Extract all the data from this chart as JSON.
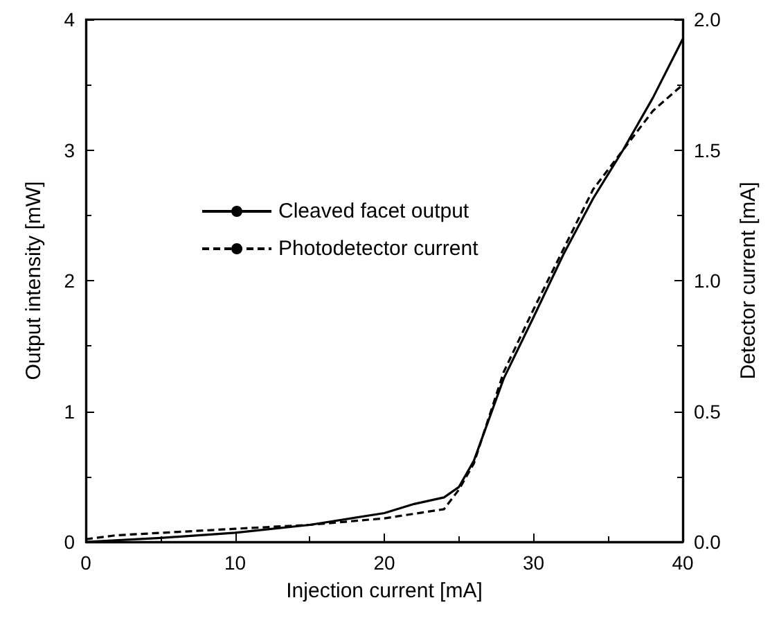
{
  "chart_data": {
    "type": "line",
    "xlabel": "Injection current [mA]",
    "ylabel": "Output intensity [mW]",
    "y2label": "Detector current [mA]",
    "xlim": [
      0,
      40
    ],
    "xticks": [
      0,
      10,
      20,
      30,
      40
    ],
    "ylim": [
      0,
      4
    ],
    "yticks": [
      0,
      1,
      2,
      3,
      4
    ],
    "y2lim": [
      0,
      2
    ],
    "y2ticks": [
      {
        "value": 0,
        "label": "0.0"
      },
      {
        "value": 0.5,
        "label": "0.5"
      },
      {
        "value": 1,
        "label": "1.0"
      },
      {
        "value": 1.5,
        "label": "1.5"
      },
      {
        "value": 2,
        "label": "2.0"
      }
    ],
    "grid": false,
    "legend": "left",
    "marker": "none",
    "series": [
      {
        "name": "Cleaved facet output",
        "color": "#000000",
        "line_style": "solid",
        "x": [
          0,
          5,
          10,
          15,
          20,
          22,
          24,
          25,
          26,
          28,
          30,
          32,
          34,
          36,
          38,
          40
        ],
        "values": [
          0,
          0.03,
          0.07,
          0.13,
          0.22,
          0.29,
          0.34,
          0.42,
          0.62,
          1.25,
          1.72,
          2.2,
          2.63,
          3.0,
          3.4,
          3.85
        ]
      },
      {
        "name": "Photodetector current",
        "color": "#000000",
        "line_style": "dashed",
        "axis": "y2",
        "x": [
          0,
          2,
          10,
          15,
          20,
          24,
          25,
          26,
          28,
          30,
          32,
          34,
          36,
          38,
          40
        ],
        "values": [
          0.01,
          0.025,
          0.05,
          0.065,
          0.09,
          0.125,
          0.2,
          0.3,
          0.65,
          0.89,
          1.12,
          1.35,
          1.5,
          1.65,
          1.75
        ]
      }
    ]
  }
}
